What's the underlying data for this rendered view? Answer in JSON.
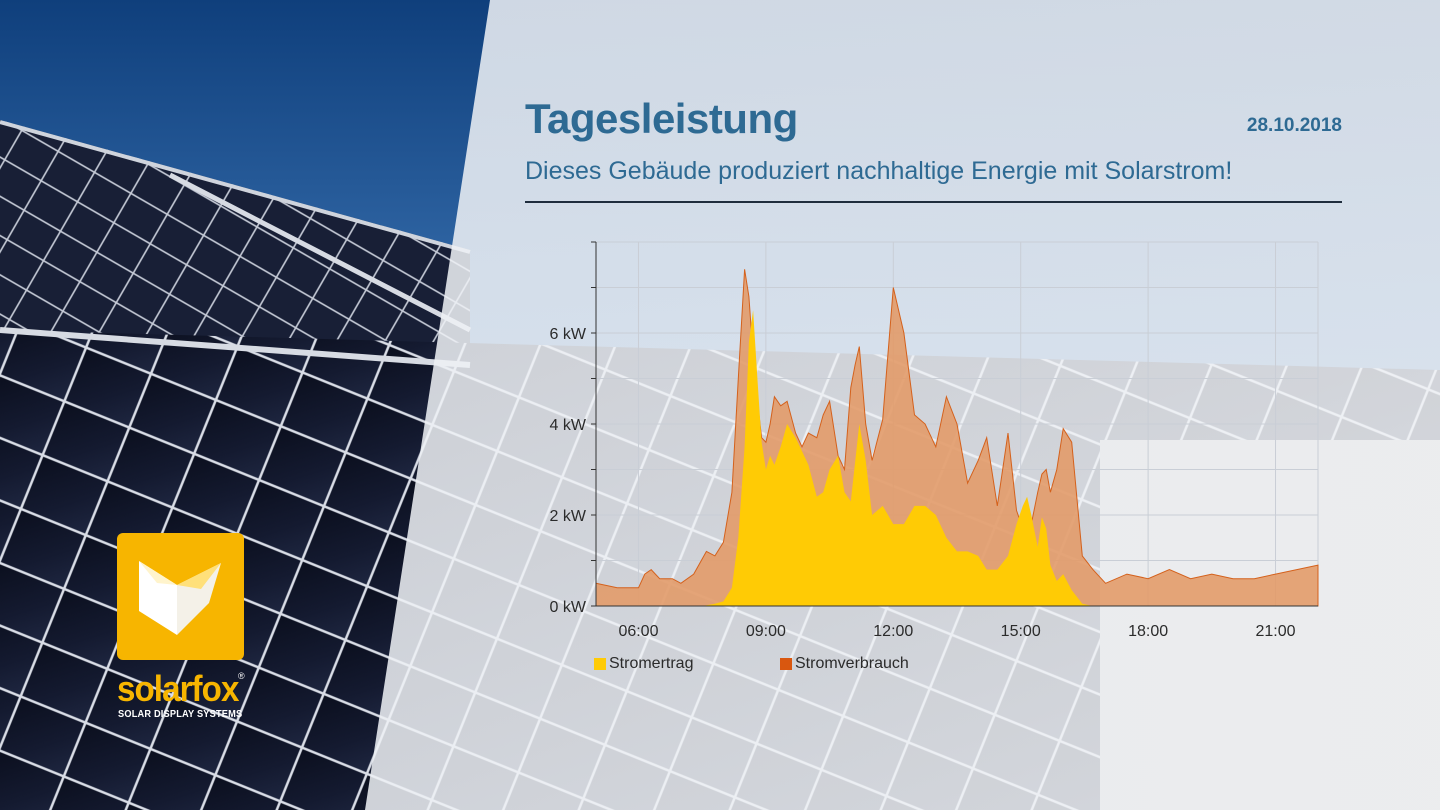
{
  "header": {
    "title": "Tagesleistung",
    "date": "28.10.2018",
    "subtitle": "Dieses Gebäude produziert nachhaltige Energie mit Solarstrom!"
  },
  "logo": {
    "wordmark": "solarfox",
    "registered": "®",
    "tagline": "SOLAR DISPLAY SYSTEMS",
    "color": "#f7b500"
  },
  "colors": {
    "production": "#ffcb05",
    "consumption": "#e39a66",
    "consumption_line": "#d4611c",
    "consumption_legend": "#d9570f",
    "accent": "#2e6a93"
  },
  "chart_data": {
    "type": "area",
    "title": "",
    "xlabel": "",
    "ylabel": "",
    "x_unit": "hours",
    "xlim": [
      5.0,
      22.0
    ],
    "ylim": [
      0,
      8
    ],
    "y_ticks": [
      0,
      2,
      4,
      6
    ],
    "y_tick_labels": [
      "0 kW",
      "2 kW",
      "4 kW",
      "6 kW"
    ],
    "x_ticks": [
      6,
      9,
      12,
      15,
      18,
      21
    ],
    "x_tick_labels": [
      "06:00",
      "09:00",
      "12:00",
      "15:00",
      "18:00",
      "21:00"
    ],
    "grid": true,
    "legend_position": "bottom-left",
    "series": [
      {
        "name": "Stromertrag",
        "color": "#ffcb05",
        "x": [
          5.0,
          7.5,
          7.8,
          8.0,
          8.2,
          8.35,
          8.5,
          8.6,
          8.7,
          8.8,
          8.9,
          9.0,
          9.1,
          9.2,
          9.35,
          9.5,
          9.7,
          9.85,
          10.0,
          10.2,
          10.35,
          10.5,
          10.7,
          10.85,
          11.0,
          11.2,
          11.35,
          11.5,
          11.75,
          12.0,
          12.25,
          12.5,
          12.75,
          13.0,
          13.25,
          13.5,
          13.75,
          14.0,
          14.2,
          14.45,
          14.7,
          14.9,
          15.05,
          15.15,
          15.25,
          15.4,
          15.5,
          15.6,
          15.7,
          15.85,
          16.0,
          16.2,
          16.45,
          16.7,
          22.0
        ],
        "y": [
          0,
          0,
          0.05,
          0.1,
          0.4,
          1.5,
          3.5,
          5.8,
          6.5,
          5.0,
          3.6,
          3.0,
          3.3,
          3.1,
          3.5,
          4.0,
          3.7,
          3.4,
          3.1,
          2.4,
          2.5,
          3.0,
          3.3,
          2.5,
          2.3,
          4.0,
          3.2,
          2.0,
          2.2,
          1.8,
          1.8,
          2.2,
          2.2,
          2.0,
          1.5,
          1.2,
          1.2,
          1.1,
          0.8,
          0.8,
          1.1,
          1.8,
          2.2,
          2.4,
          2.0,
          1.3,
          1.95,
          1.7,
          0.9,
          0.55,
          0.7,
          0.35,
          0.05,
          0,
          0
        ]
      },
      {
        "name": "Stromverbrauch",
        "color": "#e39a66",
        "x": [
          5.0,
          5.5,
          6.0,
          6.15,
          6.3,
          6.5,
          6.8,
          7.0,
          7.3,
          7.6,
          7.8,
          8.0,
          8.2,
          8.35,
          8.5,
          8.6,
          8.7,
          8.8,
          8.9,
          9.0,
          9.1,
          9.2,
          9.35,
          9.5,
          9.7,
          9.85,
          10.0,
          10.2,
          10.35,
          10.5,
          10.7,
          10.85,
          11.0,
          11.1,
          11.2,
          11.35,
          11.5,
          11.75,
          12.0,
          12.25,
          12.5,
          12.75,
          13.0,
          13.25,
          13.5,
          13.75,
          14.0,
          14.2,
          14.45,
          14.7,
          14.9,
          15.05,
          15.15,
          15.25,
          15.4,
          15.5,
          15.6,
          15.7,
          15.85,
          16.0,
          16.2,
          16.45,
          16.7,
          17.0,
          17.5,
          18.0,
          18.5,
          19.0,
          19.5,
          20.0,
          20.5,
          21.0,
          21.5,
          22.0
        ],
        "y": [
          0.5,
          0.4,
          0.4,
          0.7,
          0.8,
          0.6,
          0.6,
          0.5,
          0.7,
          1.2,
          1.1,
          1.4,
          2.5,
          5.0,
          7.4,
          6.8,
          5.5,
          4.5,
          3.7,
          3.6,
          4.0,
          4.6,
          4.4,
          4.5,
          3.8,
          3.5,
          3.8,
          3.7,
          4.2,
          4.5,
          3.3,
          3.0,
          4.8,
          5.3,
          5.7,
          4.0,
          3.2,
          4.1,
          7.0,
          6.0,
          4.2,
          4.0,
          3.5,
          4.6,
          4.0,
          2.7,
          3.2,
          3.7,
          2.2,
          3.8,
          2.1,
          1.7,
          1.8,
          1.8,
          2.5,
          2.9,
          3.0,
          2.5,
          3.0,
          3.9,
          3.6,
          1.1,
          0.8,
          0.5,
          0.7,
          0.6,
          0.8,
          0.6,
          0.7,
          0.6,
          0.6,
          0.7,
          0.8,
          0.9
        ]
      }
    ]
  }
}
